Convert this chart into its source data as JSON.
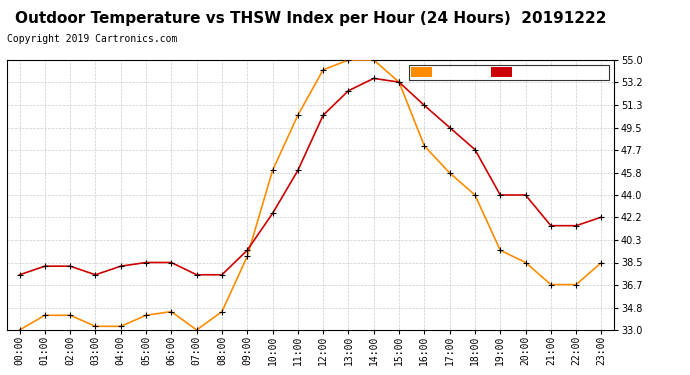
{
  "title": "Outdoor Temperature vs THSW Index per Hour (24 Hours)  20191222",
  "copyright": "Copyright 2019 Cartronics.com",
  "hours": [
    "00:00",
    "01:00",
    "02:00",
    "03:00",
    "04:00",
    "05:00",
    "06:00",
    "07:00",
    "08:00",
    "09:00",
    "10:00",
    "11:00",
    "12:00",
    "13:00",
    "14:00",
    "15:00",
    "16:00",
    "17:00",
    "18:00",
    "19:00",
    "20:00",
    "21:00",
    "22:00",
    "23:00"
  ],
  "temperature": [
    37.5,
    38.2,
    38.2,
    37.5,
    38.2,
    38.5,
    38.5,
    37.5,
    37.5,
    39.5,
    42.5,
    46.0,
    50.5,
    52.5,
    53.5,
    53.2,
    51.3,
    49.5,
    47.7,
    44.0,
    44.0,
    41.5,
    41.5,
    42.2
  ],
  "thsw": [
    33.0,
    34.2,
    34.2,
    33.3,
    33.3,
    34.2,
    34.5,
    33.0,
    34.5,
    39.0,
    46.0,
    50.5,
    54.2,
    55.0,
    55.0,
    53.2,
    48.0,
    45.8,
    44.0,
    39.5,
    38.5,
    36.7,
    36.7,
    38.5
  ],
  "ylim": [
    33.0,
    55.0
  ],
  "yticks": [
    33.0,
    34.8,
    36.7,
    38.5,
    40.3,
    42.2,
    44.0,
    45.8,
    47.7,
    49.5,
    51.3,
    53.2,
    55.0
  ],
  "temp_color": "#cc0000",
  "thsw_color": "#ff8c00",
  "marker_color": "#000000",
  "legend_thsw_bg": "#ff8c00",
  "legend_temp_bg": "#cc0000",
  "legend_text_color": "#ffffff",
  "background_color": "#ffffff",
  "grid_color": "#cccccc",
  "title_fontsize": 11,
  "copyright_fontsize": 7,
  "tick_fontsize": 7
}
